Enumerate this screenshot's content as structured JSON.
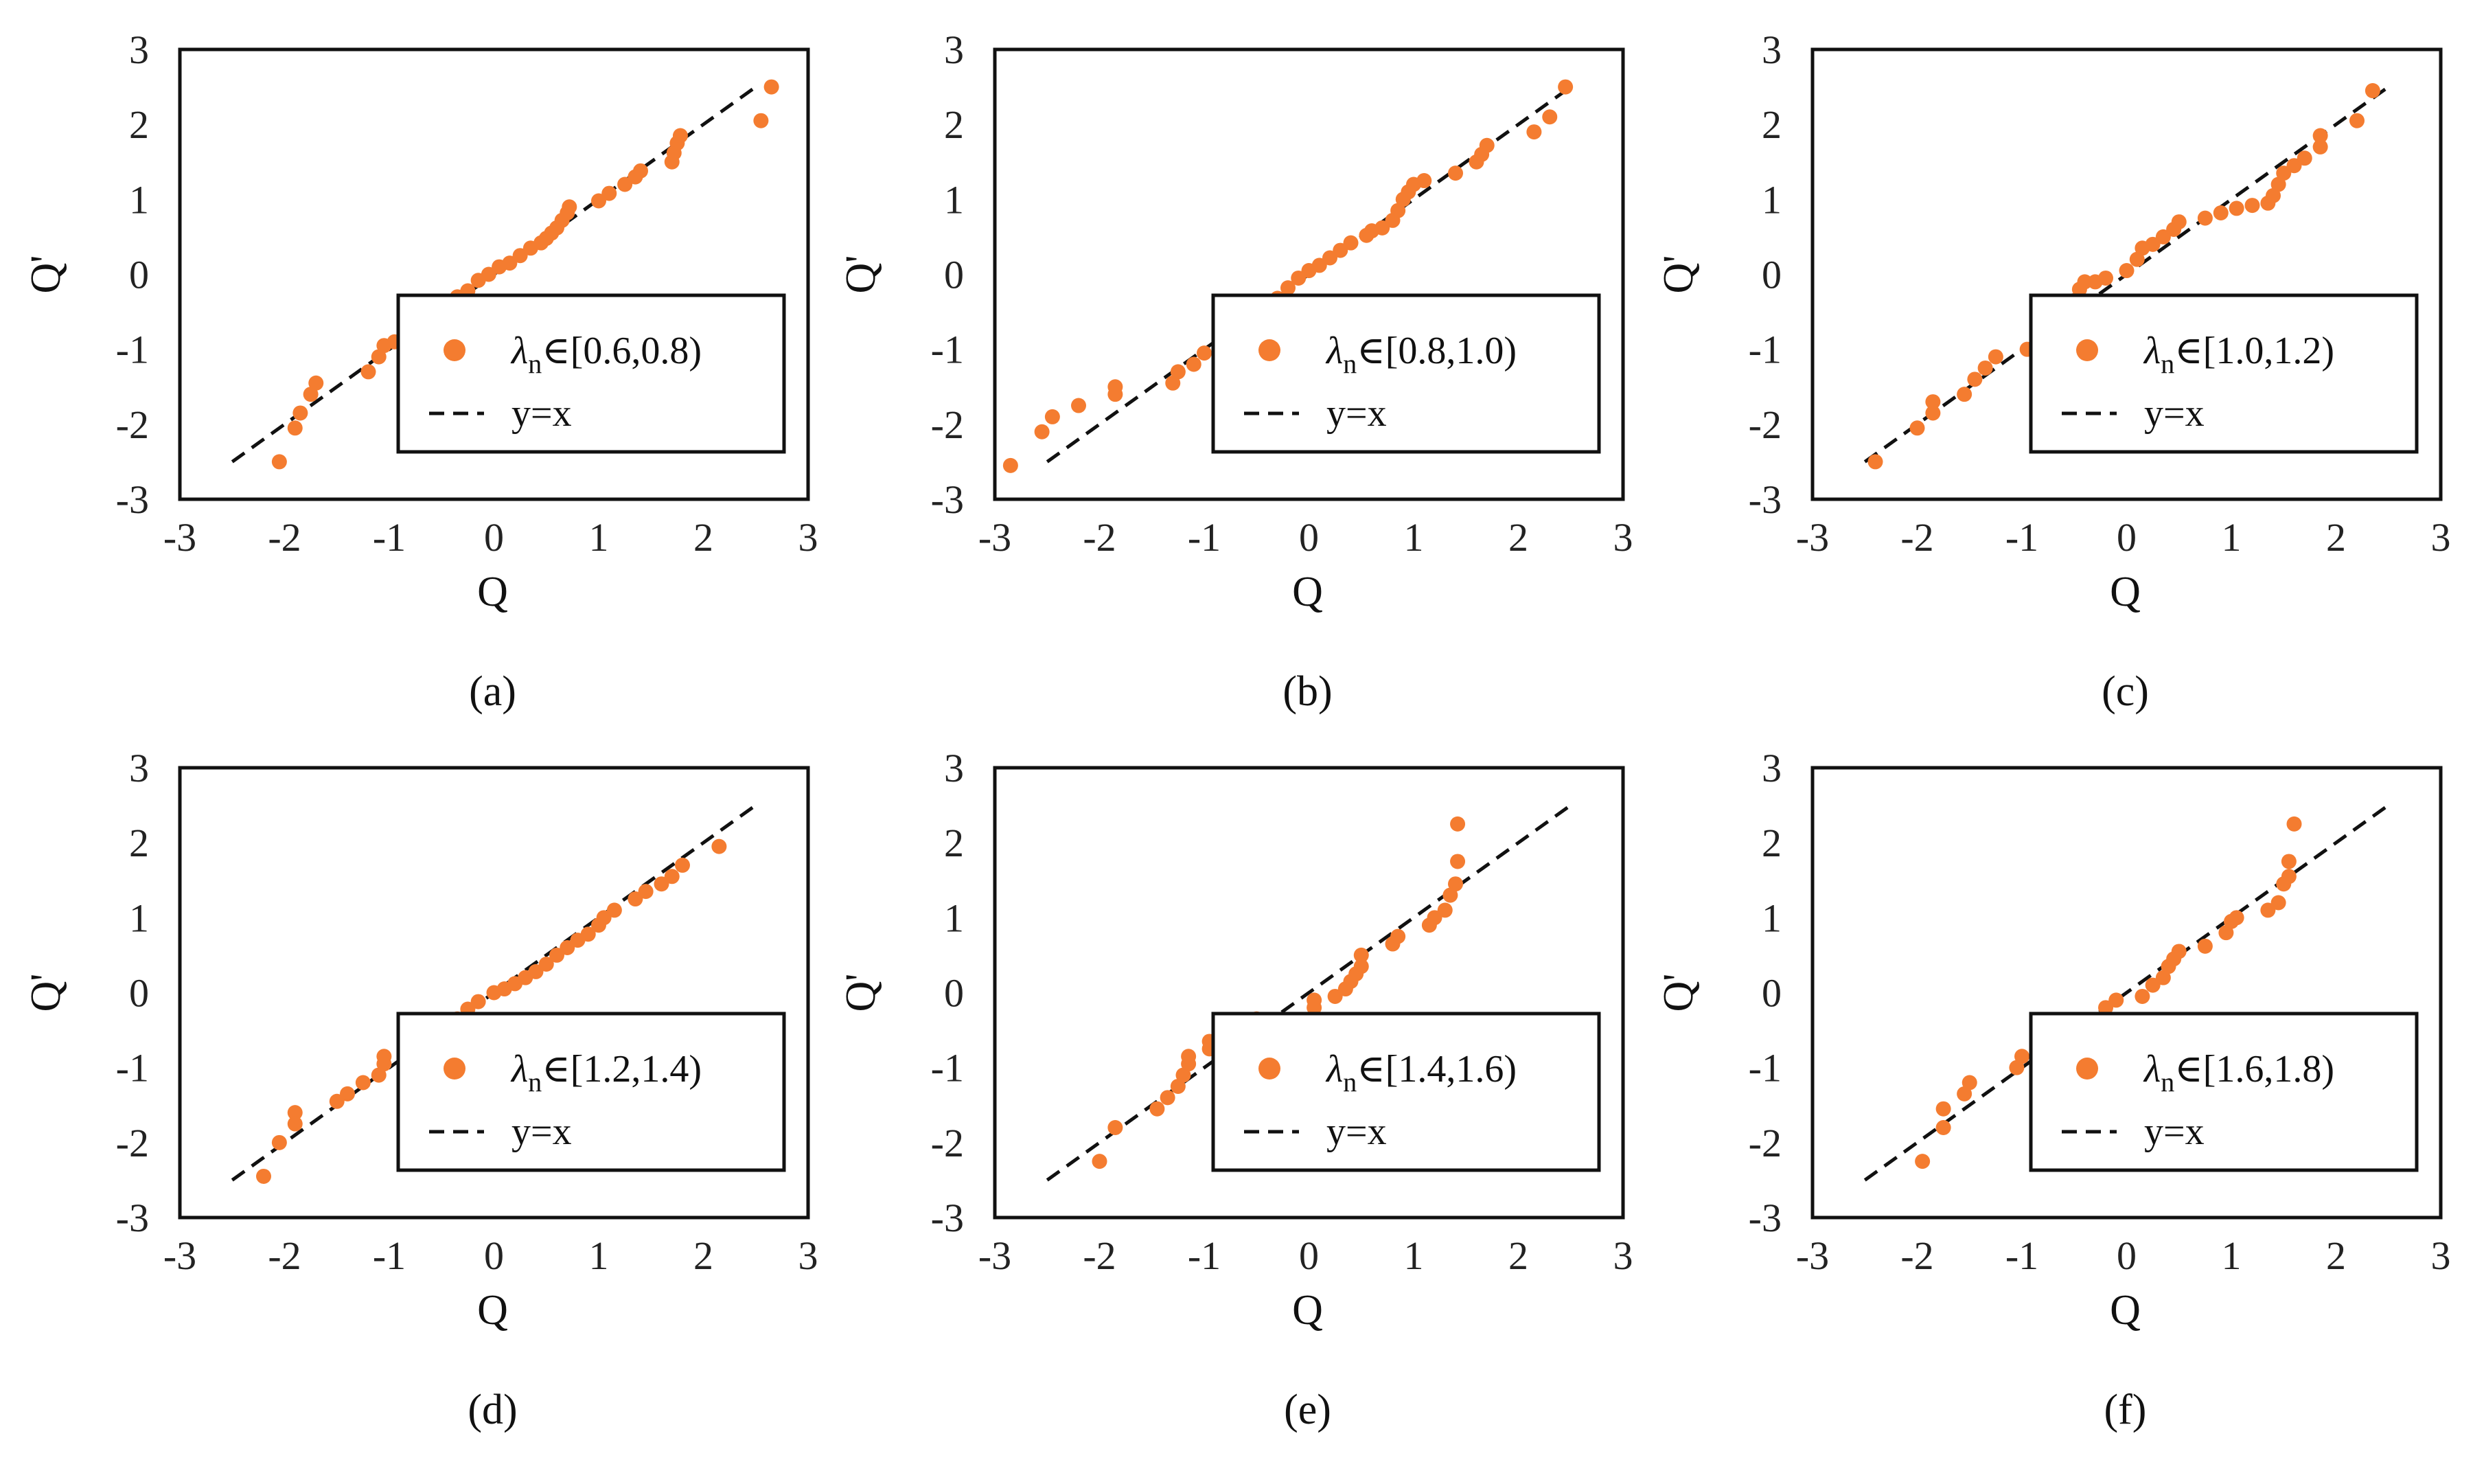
{
  "colors": {
    "points": "#F47C30",
    "reference_line": "#111111",
    "frame": "#111111"
  },
  "chart_data": [
    {
      "type": "scatter",
      "panel": "(a)",
      "xlabel": "Q",
      "ylabel": "Q'",
      "xlim": [
        -3,
        3
      ],
      "ylim": [
        -3,
        3
      ],
      "xticks": [
        "-3",
        "-2",
        "-1",
        "0",
        "1",
        "2",
        "3"
      ],
      "yticks": [
        "-3",
        "-2",
        "-1",
        "0",
        "1",
        "2",
        "3"
      ],
      "legend_position": "lower-right",
      "series": [
        {
          "name_symbol": "λ",
          "name_subscript": "n",
          "name_rest": "∈[0.6,0.8)",
          "marker": "circle",
          "points": [
            [
              -2.05,
              -2.5
            ],
            [
              -1.9,
              -2.05
            ],
            [
              -1.85,
              -1.85
            ],
            [
              -1.75,
              -1.6
            ],
            [
              -1.7,
              -1.45
            ],
            [
              -1.2,
              -1.3
            ],
            [
              -1.1,
              -1.1
            ],
            [
              -1.05,
              -0.95
            ],
            [
              -0.95,
              -0.9
            ],
            [
              -0.7,
              -0.7
            ],
            [
              -0.55,
              -0.55
            ],
            [
              -0.45,
              -0.42
            ],
            [
              -0.35,
              -0.3
            ],
            [
              -0.25,
              -0.22
            ],
            [
              -0.15,
              -0.08
            ],
            [
              -0.05,
              0.0
            ],
            [
              0.05,
              0.1
            ],
            [
              0.15,
              0.15
            ],
            [
              0.25,
              0.25
            ],
            [
              0.35,
              0.35
            ],
            [
              0.45,
              0.42
            ],
            [
              0.5,
              0.48
            ],
            [
              0.55,
              0.55
            ],
            [
              0.6,
              0.62
            ],
            [
              0.65,
              0.72
            ],
            [
              0.7,
              0.82
            ],
            [
              0.72,
              0.9
            ],
            [
              1.0,
              0.98
            ],
            [
              1.1,
              1.08
            ],
            [
              1.25,
              1.2
            ],
            [
              1.35,
              1.3
            ],
            [
              1.4,
              1.38
            ],
            [
              1.7,
              1.5
            ],
            [
              1.72,
              1.62
            ],
            [
              1.75,
              1.75
            ],
            [
              1.78,
              1.85
            ],
            [
              2.55,
              2.05
            ],
            [
              2.65,
              2.5
            ]
          ]
        },
        {
          "name": "y=x",
          "line_style": "dashed",
          "points": [
            [
              -2.5,
              -2.5
            ],
            [
              2.5,
              2.5
            ]
          ]
        }
      ]
    },
    {
      "type": "scatter",
      "panel": "(b)",
      "xlabel": "Q",
      "ylabel": "Q'",
      "xlim": [
        -3,
        3
      ],
      "ylim": [
        -3,
        3
      ],
      "xticks": [
        "-3",
        "-2",
        "-1",
        "0",
        "1",
        "2",
        "3"
      ],
      "yticks": [
        "-3",
        "-2",
        "-1",
        "0",
        "1",
        "2",
        "3"
      ],
      "legend_position": "lower-right",
      "series": [
        {
          "name_symbol": "λ",
          "name_subscript": "n",
          "name_rest": "∈[0.8,1.0)",
          "marker": "circle",
          "points": [
            [
              -2.85,
              -2.55
            ],
            [
              -2.55,
              -2.1
            ],
            [
              -2.45,
              -1.9
            ],
            [
              -2.2,
              -1.75
            ],
            [
              -1.85,
              -1.6
            ],
            [
              -1.85,
              -1.5
            ],
            [
              -1.3,
              -1.45
            ],
            [
              -1.25,
              -1.3
            ],
            [
              -1.1,
              -1.2
            ],
            [
              -1.0,
              -1.05
            ],
            [
              -0.6,
              -0.65
            ],
            [
              -0.5,
              -0.5
            ],
            [
              -0.4,
              -0.42
            ],
            [
              -0.3,
              -0.32
            ],
            [
              -0.2,
              -0.18
            ],
            [
              -0.1,
              -0.05
            ],
            [
              0.0,
              0.05
            ],
            [
              0.1,
              0.12
            ],
            [
              0.2,
              0.22
            ],
            [
              0.3,
              0.32
            ],
            [
              0.4,
              0.42
            ],
            [
              0.55,
              0.52
            ],
            [
              0.6,
              0.58
            ],
            [
              0.7,
              0.62
            ],
            [
              0.8,
              0.72
            ],
            [
              0.85,
              0.85
            ],
            [
              0.9,
              1.0
            ],
            [
              0.95,
              1.1
            ],
            [
              1.0,
              1.2
            ],
            [
              1.1,
              1.25
            ],
            [
              1.4,
              1.35
            ],
            [
              1.6,
              1.5
            ],
            [
              1.65,
              1.6
            ],
            [
              1.7,
              1.72
            ],
            [
              2.15,
              1.9
            ],
            [
              2.3,
              2.1
            ],
            [
              2.45,
              2.5
            ]
          ]
        },
        {
          "name": "y=x",
          "line_style": "dashed",
          "points": [
            [
              -2.5,
              -2.5
            ],
            [
              2.5,
              2.5
            ]
          ]
        }
      ]
    },
    {
      "type": "scatter",
      "panel": "(c)",
      "xlabel": "Q",
      "ylabel": "Q'",
      "xlim": [
        -3,
        3
      ],
      "ylim": [
        -3,
        3
      ],
      "xticks": [
        "-3",
        "-2",
        "-1",
        "0",
        "1",
        "2",
        "3"
      ],
      "yticks": [
        "-3",
        "-2",
        "-1",
        "0",
        "1",
        "2",
        "3"
      ],
      "legend_position": "lower-right",
      "series": [
        {
          "name_symbol": "λ",
          "name_subscript": "n",
          "name_rest": "∈[1.0,1.2)",
          "marker": "circle",
          "points": [
            [
              -2.4,
              -2.5
            ],
            [
              -2.0,
              -2.05
            ],
            [
              -1.85,
              -1.85
            ],
            [
              -1.85,
              -1.7
            ],
            [
              -1.55,
              -1.6
            ],
            [
              -1.45,
              -1.4
            ],
            [
              -1.35,
              -1.25
            ],
            [
              -1.25,
              -1.1
            ],
            [
              -0.95,
              -1.0
            ],
            [
              -0.55,
              -0.65
            ],
            [
              -0.5,
              -0.5
            ],
            [
              -0.5,
              -0.35
            ],
            [
              -0.45,
              -0.2
            ],
            [
              -0.4,
              -0.1
            ],
            [
              -0.3,
              -0.1
            ],
            [
              -0.2,
              -0.05
            ],
            [
              0.0,
              0.05
            ],
            [
              0.1,
              0.2
            ],
            [
              0.15,
              0.35
            ],
            [
              0.25,
              0.4
            ],
            [
              0.35,
              0.5
            ],
            [
              0.45,
              0.6
            ],
            [
              0.5,
              0.7
            ],
            [
              0.75,
              0.75
            ],
            [
              0.9,
              0.82
            ],
            [
              1.05,
              0.88
            ],
            [
              1.2,
              0.92
            ],
            [
              1.35,
              0.95
            ],
            [
              1.4,
              1.05
            ],
            [
              1.45,
              1.2
            ],
            [
              1.5,
              1.35
            ],
            [
              1.6,
              1.45
            ],
            [
              1.7,
              1.55
            ],
            [
              1.85,
              1.7
            ],
            [
              1.85,
              1.85
            ],
            [
              2.2,
              2.05
            ],
            [
              2.35,
              2.45
            ]
          ]
        },
        {
          "name": "y=x",
          "line_style": "dashed",
          "points": [
            [
              -2.5,
              -2.5
            ],
            [
              2.5,
              2.5
            ]
          ]
        }
      ]
    },
    {
      "type": "scatter",
      "panel": "(d)",
      "xlabel": "Q",
      "ylabel": "Q'",
      "xlim": [
        -3,
        3
      ],
      "ylim": [
        -3,
        3
      ],
      "xticks": [
        "-3",
        "-2",
        "-1",
        "0",
        "1",
        "2",
        "3"
      ],
      "yticks": [
        "-3",
        "-2",
        "-1",
        "0",
        "1",
        "2",
        "3"
      ],
      "legend_position": "lower-right",
      "series": [
        {
          "name_symbol": "λ",
          "name_subscript": "n",
          "name_rest": "∈[1.2,1.4)",
          "marker": "circle",
          "points": [
            [
              -2.2,
              -2.45
            ],
            [
              -2.05,
              -2.0
            ],
            [
              -1.9,
              -1.75
            ],
            [
              -1.9,
              -1.6
            ],
            [
              -1.5,
              -1.45
            ],
            [
              -1.4,
              -1.35
            ],
            [
              -1.25,
              -1.2
            ],
            [
              -1.1,
              -1.1
            ],
            [
              -1.05,
              -0.95
            ],
            [
              -1.05,
              -0.85
            ],
            [
              -0.6,
              -0.6
            ],
            [
              -0.45,
              -0.5
            ],
            [
              -0.35,
              -0.35
            ],
            [
              -0.25,
              -0.22
            ],
            [
              -0.15,
              -0.12
            ],
            [
              0.0,
              0.0
            ],
            [
              0.1,
              0.05
            ],
            [
              0.2,
              0.12
            ],
            [
              0.3,
              0.2
            ],
            [
              0.4,
              0.28
            ],
            [
              0.5,
              0.38
            ],
            [
              0.6,
              0.5
            ],
            [
              0.7,
              0.6
            ],
            [
              0.8,
              0.7
            ],
            [
              0.9,
              0.78
            ],
            [
              1.0,
              0.9
            ],
            [
              1.05,
              1.0
            ],
            [
              1.15,
              1.1
            ],
            [
              1.35,
              1.25
            ],
            [
              1.45,
              1.35
            ],
            [
              1.6,
              1.45
            ],
            [
              1.7,
              1.55
            ],
            [
              1.8,
              1.7
            ],
            [
              2.15,
              1.95
            ]
          ]
        },
        {
          "name": "y=x",
          "line_style": "dashed",
          "points": [
            [
              -2.5,
              -2.5
            ],
            [
              2.5,
              2.5
            ]
          ]
        }
      ]
    },
    {
      "type": "scatter",
      "panel": "(e)",
      "xlabel": "Q",
      "ylabel": "Q'",
      "xlim": [
        -3,
        3
      ],
      "ylim": [
        -3,
        3
      ],
      "xticks": [
        "-3",
        "-2",
        "-1",
        "0",
        "1",
        "2",
        "3"
      ],
      "yticks": [
        "-3",
        "-2",
        "-1",
        "0",
        "1",
        "2",
        "3"
      ],
      "legend_position": "lower-right",
      "series": [
        {
          "name_symbol": "λ",
          "name_subscript": "n",
          "name_rest": "∈[1.4,1.6)",
          "marker": "circle",
          "points": [
            [
              -2.0,
              -2.25
            ],
            [
              -1.85,
              -1.8
            ],
            [
              -1.45,
              -1.55
            ],
            [
              -1.35,
              -1.4
            ],
            [
              -1.25,
              -1.25
            ],
            [
              -1.2,
              -1.1
            ],
            [
              -1.15,
              -0.95
            ],
            [
              -1.15,
              -0.85
            ],
            [
              -0.95,
              -0.75
            ],
            [
              -0.95,
              -0.65
            ],
            [
              -0.75,
              -0.55
            ],
            [
              -0.5,
              -0.45
            ],
            [
              -0.5,
              -0.35
            ],
            [
              0.05,
              -0.2
            ],
            [
              0.05,
              -0.1
            ],
            [
              0.25,
              -0.05
            ],
            [
              0.35,
              0.05
            ],
            [
              0.4,
              0.15
            ],
            [
              0.45,
              0.25
            ],
            [
              0.5,
              0.35
            ],
            [
              0.5,
              0.5
            ],
            [
              0.8,
              0.65
            ],
            [
              0.85,
              0.75
            ],
            [
              1.15,
              0.9
            ],
            [
              1.2,
              1.0
            ],
            [
              1.3,
              1.1
            ],
            [
              1.35,
              1.3
            ],
            [
              1.4,
              1.45
            ],
            [
              1.42,
              1.75
            ],
            [
              1.42,
              2.25
            ]
          ]
        },
        {
          "name": "y=x",
          "line_style": "dashed",
          "points": [
            [
              -2.5,
              -2.5
            ],
            [
              2.5,
              2.5
            ]
          ]
        }
      ]
    },
    {
      "type": "scatter",
      "panel": "(f)",
      "xlabel": "Q",
      "ylabel": "Q'",
      "xlim": [
        -3,
        3
      ],
      "ylim": [
        -3,
        3
      ],
      "xticks": [
        "-3",
        "-2",
        "-1",
        "0",
        "1",
        "2",
        "3"
      ],
      "yticks": [
        "-3",
        "-2",
        "-1",
        "0",
        "1",
        "2",
        "3"
      ],
      "legend_position": "lower-right",
      "series": [
        {
          "name_symbol": "λ",
          "name_subscript": "n",
          "name_rest": "∈[1.6,1.8)",
          "marker": "circle",
          "points": [
            [
              -1.95,
              -2.25
            ],
            [
              -1.75,
              -1.8
            ],
            [
              -1.75,
              -1.55
            ],
            [
              -1.55,
              -1.35
            ],
            [
              -1.5,
              -1.2
            ],
            [
              -1.05,
              -1.0
            ],
            [
              -1.0,
              -0.85
            ],
            [
              -0.5,
              -0.65
            ],
            [
              -0.4,
              -0.55
            ],
            [
              -0.4,
              -0.45
            ],
            [
              -0.2,
              -0.2
            ],
            [
              -0.1,
              -0.1
            ],
            [
              0.15,
              -0.05
            ],
            [
              0.25,
              0.1
            ],
            [
              0.35,
              0.2
            ],
            [
              0.4,
              0.35
            ],
            [
              0.45,
              0.45
            ],
            [
              0.5,
              0.55
            ],
            [
              0.75,
              0.62
            ],
            [
              0.95,
              0.8
            ],
            [
              1.0,
              0.95
            ],
            [
              1.05,
              1.0
            ],
            [
              1.35,
              1.1
            ],
            [
              1.45,
              1.2
            ],
            [
              1.5,
              1.45
            ],
            [
              1.55,
              1.55
            ],
            [
              1.55,
              1.75
            ],
            [
              1.6,
              2.25
            ]
          ]
        },
        {
          "name": "y=x",
          "line_style": "dashed",
          "points": [
            [
              -2.5,
              -2.5
            ],
            [
              2.5,
              2.5
            ]
          ]
        }
      ]
    }
  ]
}
